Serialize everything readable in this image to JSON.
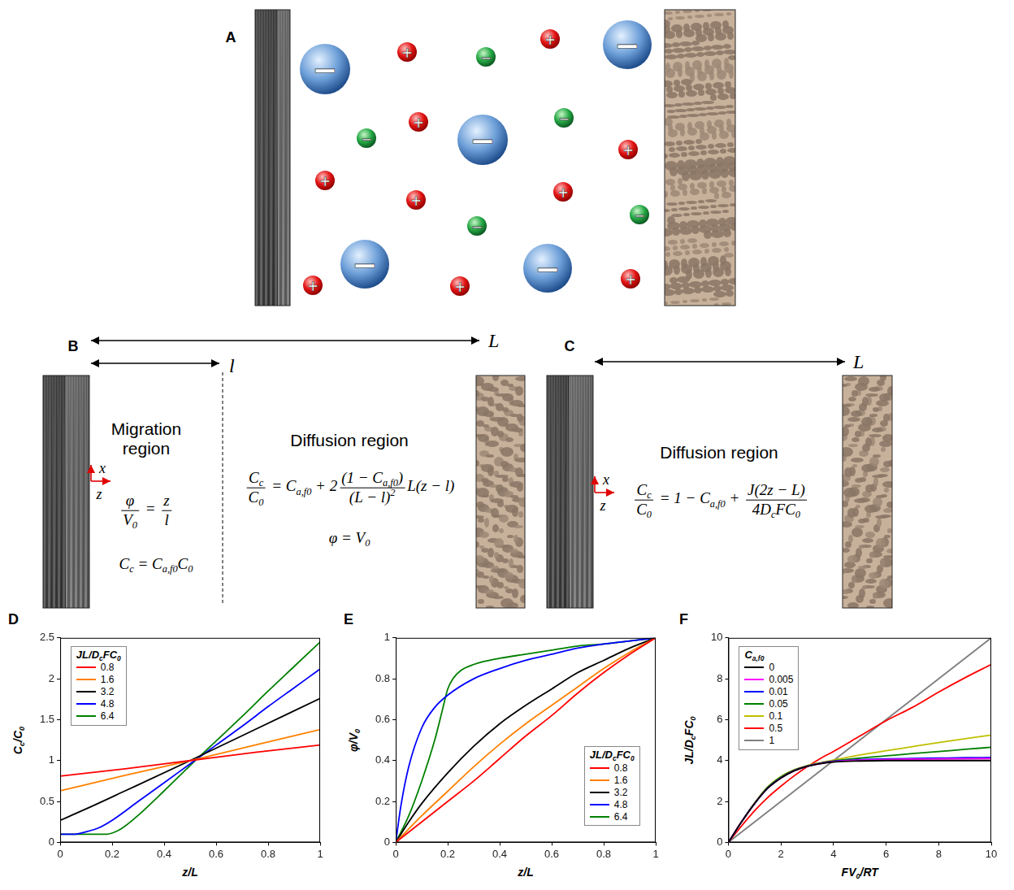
{
  "diagram": {
    "A": {
      "letter": "A",
      "large_anion_sign": "−",
      "cation_sign": "+",
      "small_anion_sign": "−"
    },
    "B": {
      "letter": "B",
      "span_total": "L",
      "span_migration": "l",
      "axis_x": "x",
      "axis_z": "z",
      "migration": {
        "title": "Migration region",
        "equations": [
          [
            {
              "frac": [
                [
                  "φ"
                ],
                [
                  "V",
                  {
                    "sub": "0"
                  }
                ]
              ]
            },
            " = ",
            {
              "frac": [
                [
                  "z"
                ],
                [
                  "l"
                ]
              ]
            }
          ],
          [
            "C",
            {
              "sub": "c"
            },
            " = C",
            {
              "sub": "a,f0"
            },
            "C",
            {
              "sub": "0"
            }
          ]
        ]
      },
      "diffusion": {
        "title": "Diffusion region",
        "equations": [
          [
            {
              "frac": [
                [
                  "C",
                  {
                    "sub": "c"
                  }
                ],
                [
                  "C",
                  {
                    "sub": "0"
                  }
                ]
              ]
            },
            " = C",
            {
              "sub": "a,f0"
            },
            " + 2",
            {
              "frac": [
                [
                  "(1 − C",
                  {
                    "sub": "a,f0"
                  },
                  ")"
                ],
                [
                  "(L − l)",
                  {
                    "sup": "2"
                  }
                ]
              ]
            },
            "L(z − l)"
          ],
          [
            "φ = V",
            {
              "sub": "0"
            }
          ]
        ]
      }
    },
    "C": {
      "letter": "C",
      "span_total": "L",
      "axis_x": "x",
      "axis_z": "z",
      "diffusion": {
        "title": "Diffusion region",
        "equations": [
          [
            {
              "frac": [
                [
                  "C",
                  {
                    "sub": "c"
                  }
                ],
                [
                  "C",
                  {
                    "sub": "0"
                  }
                ]
              ]
            },
            " = 1 − C",
            {
              "sub": "a,f0"
            },
            " + ",
            {
              "frac": [
                [
                  "J(2z − L)"
                ],
                [
                  "4D",
                  {
                    "sub": "c"
                  },
                  "FC",
                  {
                    "sub": "0"
                  }
                ]
              ]
            }
          ]
        ]
      }
    }
  },
  "chart_data": [
    {
      "panel_label": "D",
      "type": "line",
      "x_label": [
        "z/L"
      ],
      "y_label": [
        "C",
        {
          "sub": "c"
        },
        "/C",
        {
          "sub": "0"
        }
      ],
      "legend_title": [
        "JL/D",
        {
          "sub": "c"
        },
        "FC",
        {
          "sub": "0"
        }
      ],
      "legend": "top-left",
      "grid": false,
      "xlim": [
        0,
        1
      ],
      "xticks": [
        0,
        0.2,
        0.4,
        0.6,
        0.8,
        1
      ],
      "ylim": [
        0,
        2.5
      ],
      "yticks": [
        0,
        0.5,
        1,
        1.5,
        2,
        2.5
      ],
      "series": [
        {
          "name": "0.8",
          "color": "#ff0000",
          "x": [
            0,
            0.25,
            0.5,
            0.75,
            1
          ],
          "values": [
            0.81,
            0.9,
            1.0,
            1.1,
            1.19
          ]
        },
        {
          "name": "1.6",
          "color": "#ff8000",
          "x": [
            0,
            0.25,
            0.5,
            0.75,
            1
          ],
          "values": [
            0.63,
            0.82,
            1.0,
            1.19,
            1.38
          ]
        },
        {
          "name": "3.2",
          "color": "#000000",
          "x": [
            0,
            0.1,
            0.25,
            0.5,
            0.75,
            1
          ],
          "values": [
            0.27,
            0.41,
            0.63,
            1.0,
            1.38,
            1.76
          ]
        },
        {
          "name": "4.8",
          "color": "#0000ff",
          "x": [
            0,
            0.05,
            0.1,
            0.15,
            0.2,
            0.3,
            0.4,
            0.5,
            0.6,
            0.7,
            0.8,
            0.9,
            1
          ],
          "values": [
            0.1,
            0.1,
            0.13,
            0.18,
            0.27,
            0.5,
            0.73,
            0.96,
            1.19,
            1.42,
            1.66,
            1.89,
            2.12
          ]
        },
        {
          "name": "6.4",
          "color": "#008000",
          "x": [
            0,
            0.1,
            0.18,
            0.22,
            0.25,
            0.3,
            0.4,
            0.5,
            0.6,
            0.7,
            0.8,
            0.9,
            1
          ],
          "values": [
            0.1,
            0.1,
            0.1,
            0.14,
            0.2,
            0.33,
            0.63,
            0.94,
            1.24,
            1.54,
            1.85,
            2.15,
            2.45
          ]
        }
      ]
    },
    {
      "panel_label": "E",
      "type": "line",
      "x_label": [
        "z/L"
      ],
      "y_label": [
        "φ/V",
        {
          "sub": "0"
        }
      ],
      "legend_title": [
        "JL/D",
        {
          "sub": "c"
        },
        "FC",
        {
          "sub": "0"
        }
      ],
      "legend": "lower-right",
      "grid": false,
      "xlim": [
        0,
        1
      ],
      "xticks": [
        0,
        0.2,
        0.4,
        0.6,
        0.8,
        1
      ],
      "ylim": [
        0,
        1
      ],
      "yticks": [
        0,
        0.2,
        0.4,
        0.6,
        0.8,
        1
      ],
      "series": [
        {
          "name": "0.8",
          "color": "#ff0000",
          "x": [
            0,
            0.1,
            0.2,
            0.3,
            0.4,
            0.5,
            0.6,
            0.7,
            0.8,
            0.9,
            1
          ],
          "values": [
            0,
            0.1,
            0.2,
            0.3,
            0.41,
            0.52,
            0.62,
            0.73,
            0.83,
            0.92,
            1
          ]
        },
        {
          "name": "1.6",
          "color": "#ff8000",
          "x": [
            0,
            0.1,
            0.2,
            0.3,
            0.4,
            0.5,
            0.6,
            0.7,
            0.8,
            0.9,
            1
          ],
          "values": [
            0,
            0.13,
            0.25,
            0.37,
            0.48,
            0.58,
            0.67,
            0.76,
            0.85,
            0.93,
            1
          ]
        },
        {
          "name": "3.2",
          "color": "#000000",
          "x": [
            0,
            0.05,
            0.1,
            0.2,
            0.3,
            0.4,
            0.5,
            0.6,
            0.7,
            0.8,
            0.9,
            1
          ],
          "values": [
            0,
            0.1,
            0.19,
            0.34,
            0.47,
            0.58,
            0.67,
            0.75,
            0.83,
            0.89,
            0.95,
            1
          ]
        },
        {
          "name": "4.8",
          "color": "#0000ff",
          "x": [
            0,
            0.02,
            0.05,
            0.1,
            0.15,
            0.2,
            0.3,
            0.4,
            0.5,
            0.6,
            0.7,
            0.8,
            0.9,
            1
          ],
          "values": [
            0,
            0.18,
            0.37,
            0.56,
            0.66,
            0.72,
            0.8,
            0.85,
            0.89,
            0.92,
            0.95,
            0.97,
            0.985,
            1
          ]
        },
        {
          "name": "6.4",
          "color": "#008000",
          "x": [
            0,
            0.05,
            0.1,
            0.15,
            0.18,
            0.2,
            0.22,
            0.25,
            0.3,
            0.4,
            0.5,
            0.6,
            0.7,
            0.8,
            0.9,
            1
          ],
          "values": [
            0,
            0.13,
            0.3,
            0.5,
            0.65,
            0.75,
            0.8,
            0.84,
            0.87,
            0.9,
            0.92,
            0.94,
            0.96,
            0.97,
            0.985,
            1
          ]
        }
      ]
    },
    {
      "panel_label": "F",
      "type": "line",
      "x_label": [
        "FV",
        {
          "sub": "0"
        },
        "/RT"
      ],
      "y_label": [
        "JL/D",
        {
          "sub": "c"
        },
        "FC",
        {
          "sub": "0"
        }
      ],
      "legend_title": [
        "C",
        {
          "sub": "a,f0"
        }
      ],
      "legend": "top-left",
      "grid": false,
      "xlim": [
        0,
        10
      ],
      "xticks": [
        0,
        2,
        4,
        6,
        8,
        10
      ],
      "ylim": [
        0,
        10
      ],
      "yticks": [
        0,
        2,
        4,
        6,
        8,
        10
      ],
      "series": [
        {
          "name": "0",
          "color": "#000000",
          "x": [
            0,
            0.5,
            1,
            1.5,
            2,
            2.5,
            3,
            3.5,
            4,
            5,
            6,
            7,
            8,
            9,
            10
          ],
          "values": [
            0,
            1.0,
            1.9,
            2.65,
            3.15,
            3.5,
            3.72,
            3.85,
            3.93,
            3.98,
            4.0,
            4.0,
            4.0,
            4.0,
            4.0
          ]
        },
        {
          "name": "0.005",
          "color": "#ff00ff",
          "x": [
            0,
            0.5,
            1,
            1.5,
            2,
            2.5,
            3,
            3.5,
            4,
            5,
            6,
            7,
            8,
            9,
            10
          ],
          "values": [
            0,
            1.0,
            1.9,
            2.65,
            3.15,
            3.5,
            3.72,
            3.86,
            3.95,
            4.02,
            4.05,
            4.07,
            4.08,
            4.09,
            4.1
          ]
        },
        {
          "name": "0.01",
          "color": "#0000ff",
          "x": [
            0,
            0.5,
            1,
            1.5,
            2,
            2.5,
            3,
            3.5,
            4,
            5,
            6,
            7,
            8,
            9,
            10
          ],
          "values": [
            0,
            1.0,
            1.9,
            2.66,
            3.16,
            3.51,
            3.73,
            3.87,
            3.96,
            4.04,
            4.08,
            4.1,
            4.12,
            4.14,
            4.15
          ]
        },
        {
          "name": "0.05",
          "color": "#008000",
          "x": [
            0,
            0.5,
            1,
            1.5,
            2,
            2.5,
            3,
            3.5,
            4,
            5,
            6,
            7,
            8,
            9,
            10
          ],
          "values": [
            0,
            1.0,
            1.92,
            2.7,
            3.2,
            3.53,
            3.74,
            3.88,
            3.98,
            4.12,
            4.23,
            4.34,
            4.44,
            4.55,
            4.65
          ]
        },
        {
          "name": "0.1",
          "color": "#bfbf00",
          "x": [
            0,
            0.5,
            1,
            1.5,
            2,
            2.5,
            3,
            3.5,
            4,
            5,
            6,
            7,
            8,
            9,
            10
          ],
          "values": [
            0,
            1.0,
            1.93,
            2.72,
            3.23,
            3.55,
            3.76,
            3.9,
            4.02,
            4.27,
            4.48,
            4.68,
            4.88,
            5.07,
            5.25
          ]
        },
        {
          "name": "0.5",
          "color": "#ff0000",
          "x": [
            0,
            0.5,
            1,
            1.5,
            2,
            2.5,
            3,
            3.5,
            4,
            5,
            6,
            7,
            8,
            9,
            10
          ],
          "values": [
            0,
            0.8,
            1.55,
            2.2,
            2.75,
            3.25,
            3.7,
            4.1,
            4.45,
            5.2,
            5.95,
            6.6,
            7.35,
            8.05,
            8.7
          ]
        },
        {
          "name": "1",
          "color": "#808080",
          "x": [
            0,
            10
          ],
          "values": [
            0,
            10
          ]
        }
      ]
    }
  ]
}
